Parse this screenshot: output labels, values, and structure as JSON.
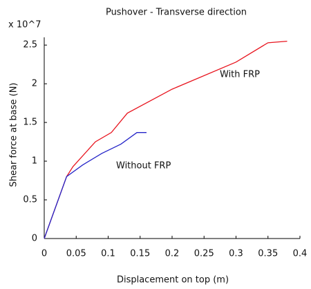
{
  "chart_data": {
    "type": "line",
    "title": "Pushover - Transverse direction",
    "x_label": "Displacement on top (m)",
    "y_label": "Shear force at base (N)",
    "y_multiplier": "x 10^7",
    "xlim": [
      0,
      0.4
    ],
    "xticks": [
      0,
      0.05,
      0.1,
      0.15,
      0.2,
      0.25,
      0.3,
      0.35,
      0.4
    ],
    "ylim": [
      0,
      2.6
    ],
    "yticks": [
      0,
      0.5,
      1,
      1.5,
      2,
      2.5
    ],
    "grid": false,
    "series": [
      {
        "name": "With FRP",
        "color": "#e8141e",
        "x": [
          0,
          0.035,
          0.045,
          0.08,
          0.105,
          0.13,
          0.2,
          0.3,
          0.35,
          0.38
        ],
        "values": [
          0,
          0.8,
          0.93,
          1.25,
          1.37,
          1.62,
          1.93,
          2.28,
          2.53,
          2.55
        ]
      },
      {
        "name": "Without FRP",
        "color": "#2424c8",
        "x": [
          0,
          0.035,
          0.06,
          0.09,
          0.12,
          0.145,
          0.16
        ],
        "values": [
          0,
          0.8,
          0.95,
          1.1,
          1.22,
          1.37,
          1.37
        ]
      }
    ]
  }
}
